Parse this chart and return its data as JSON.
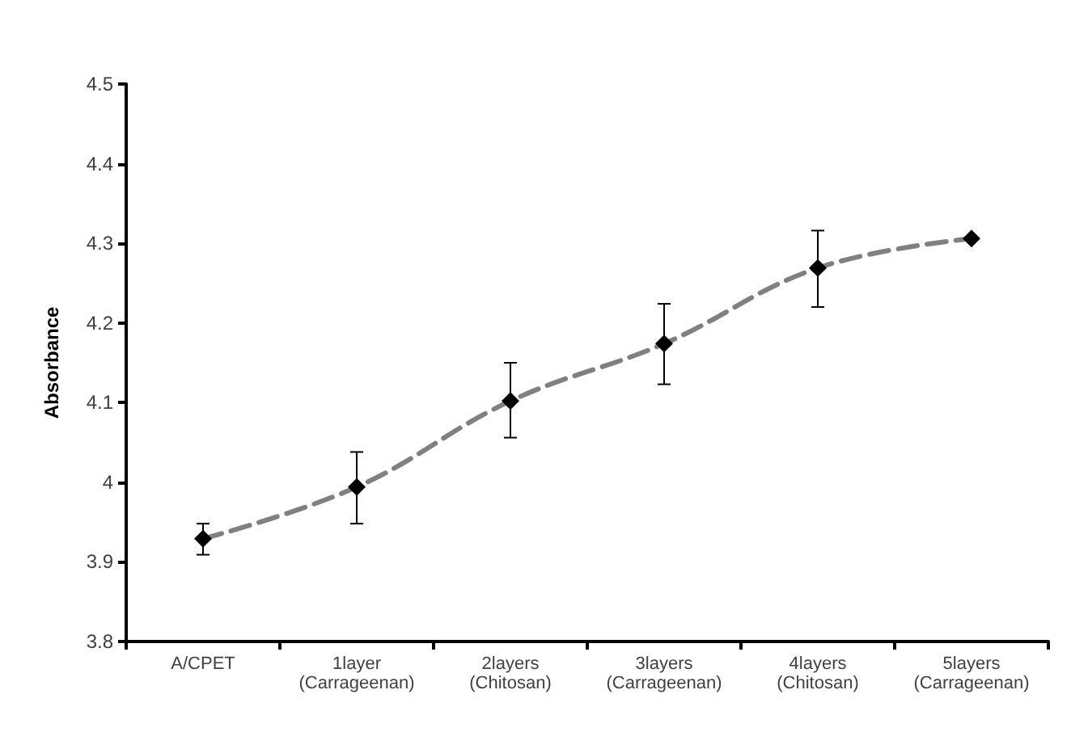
{
  "chart_data": {
    "type": "line",
    "ylabel": "Absorbance",
    "categories": [
      "A/CPET",
      "1layer\n(Carrageenan)",
      "2layers\n(Chitosan)",
      "3layers\n(Carrageenan)",
      "4layers\n(Chitosan)",
      "5layers\n(Carrageenan)"
    ],
    "series": [
      {
        "color": "#808080",
        "values": [
          3.929,
          3.994,
          4.102,
          4.174,
          4.269,
          4.306
        ],
        "errors": [
          [
            3.909,
            3.948
          ],
          [
            3.948,
            4.038
          ],
          [
            4.056,
            4.15
          ],
          [
            4.123,
            4.224
          ],
          [
            4.22,
            4.316
          ],
          null
        ]
      }
    ],
    "ylim": [
      3.8,
      4.5
    ],
    "yticks": [
      3.8,
      3.9,
      4,
      4.1,
      4.2,
      4.3,
      4.4,
      4.5
    ],
    "marker": "diamond",
    "line_style": "dashed",
    "grid": false
  }
}
